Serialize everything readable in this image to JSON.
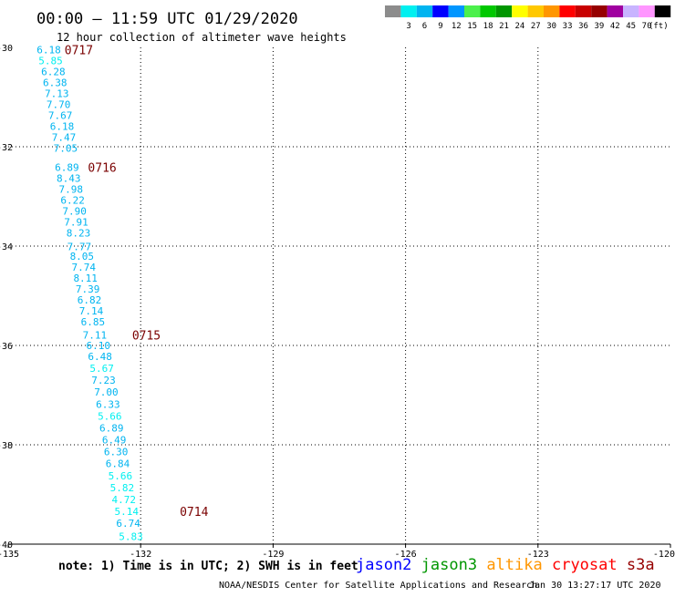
{
  "title": "00:00 – 11:59 UTC 01/29/2020",
  "subtitle": "12 hour collection of altimeter wave heights",
  "legend": {
    "unit": "(ft)",
    "swatches": [
      {
        "color": "#8c8c8c",
        "label": ""
      },
      {
        "color": "#00f0f0",
        "label": "3"
      },
      {
        "color": "#00b4f0",
        "label": "6"
      },
      {
        "color": "#0000ff",
        "label": "9"
      },
      {
        "color": "#0096ff",
        "label": "12"
      },
      {
        "color": "#4cf04c",
        "label": "15"
      },
      {
        "color": "#00c800",
        "label": "18"
      },
      {
        "color": "#009600",
        "label": "21"
      },
      {
        "color": "#ffff00",
        "label": "24"
      },
      {
        "color": "#ffc800",
        "label": "27"
      },
      {
        "color": "#ff9600",
        "label": "30"
      },
      {
        "color": "#ff0000",
        "label": "33"
      },
      {
        "color": "#c80000",
        "label": "36"
      },
      {
        "color": "#960000",
        "label": "39"
      },
      {
        "color": "#a000a0",
        "label": "42"
      },
      {
        "color": "#c8b4ff",
        "label": "45"
      },
      {
        "color": "#ff96ff",
        "label": "70"
      },
      {
        "color": "#000000",
        "label": ""
      }
    ]
  },
  "map": {
    "lon_range": [
      -135,
      -120
    ],
    "lat_range": [
      -40,
      -30
    ],
    "lon_ticks": [
      {
        "value": -135,
        "label": "-135"
      },
      {
        "value": -132,
        "label": "-132"
      },
      {
        "value": -129,
        "label": "-129"
      },
      {
        "value": -126,
        "label": "-126"
      },
      {
        "value": -123,
        "label": "-123"
      },
      {
        "value": -120,
        "label": "-120"
      }
    ],
    "lat_ticks": [
      {
        "value": -30,
        "label": "-30"
      },
      {
        "value": -32,
        "label": "-32"
      },
      {
        "value": -34,
        "label": "-34"
      },
      {
        "value": -36,
        "label": "-36"
      },
      {
        "value": -38,
        "label": "-38"
      },
      {
        "value": -40,
        "label": "-40"
      }
    ]
  },
  "wave_points": [
    {
      "lon": -134.08,
      "lat": -30.05,
      "value": "6.18",
      "color": "#00b4f0"
    },
    {
      "lon": -134.04,
      "lat": -30.27,
      "value": "5.85",
      "color": "#00f0f0"
    },
    {
      "lon": -133.98,
      "lat": -30.49,
      "value": "6.28",
      "color": "#00b4f0"
    },
    {
      "lon": -133.94,
      "lat": -30.71,
      "value": "6.38",
      "color": "#00b4f0"
    },
    {
      "lon": -133.9,
      "lat": -30.93,
      "value": "7.13",
      "color": "#00b4f0"
    },
    {
      "lon": -133.86,
      "lat": -31.15,
      "value": "7.70",
      "color": "#00b4f0"
    },
    {
      "lon": -133.82,
      "lat": -31.37,
      "value": "7.67",
      "color": "#00b4f0"
    },
    {
      "lon": -133.78,
      "lat": -31.59,
      "value": "6.18",
      "color": "#00b4f0"
    },
    {
      "lon": -133.74,
      "lat": -31.81,
      "value": "7.47",
      "color": "#00b4f0"
    },
    {
      "lon": -133.7,
      "lat": -32.03,
      "value": "7.05",
      "color": "#00b4f0"
    },
    {
      "lon": -133.67,
      "lat": -32.41,
      "value": "6.89",
      "color": "#00b4f0"
    },
    {
      "lon": -133.63,
      "lat": -32.63,
      "value": "8.43",
      "color": "#00b4f0"
    },
    {
      "lon": -133.58,
      "lat": -32.85,
      "value": "7.98",
      "color": "#00b4f0"
    },
    {
      "lon": -133.54,
      "lat": -33.07,
      "value": "6.22",
      "color": "#00b4f0"
    },
    {
      "lon": -133.5,
      "lat": -33.29,
      "value": "7.90",
      "color": "#00b4f0"
    },
    {
      "lon": -133.46,
      "lat": -33.51,
      "value": "7.91",
      "color": "#00b4f0"
    },
    {
      "lon": -133.41,
      "lat": -33.73,
      "value": "8.23",
      "color": "#00b4f0"
    },
    {
      "lon": -133.39,
      "lat": -34.01,
      "value": "7.77",
      "color": "#00b4f0"
    },
    {
      "lon": -133.33,
      "lat": -34.2,
      "value": "8.05",
      "color": "#00b4f0"
    },
    {
      "lon": -133.29,
      "lat": -34.42,
      "value": "7.74",
      "color": "#00b4f0"
    },
    {
      "lon": -133.25,
      "lat": -34.64,
      "value": "8.11",
      "color": "#00b4f0"
    },
    {
      "lon": -133.2,
      "lat": -34.86,
      "value": "7.39",
      "color": "#00b4f0"
    },
    {
      "lon": -133.16,
      "lat": -35.08,
      "value": "6.82",
      "color": "#00b4f0"
    },
    {
      "lon": -133.12,
      "lat": -35.3,
      "value": "7.14",
      "color": "#00b4f0"
    },
    {
      "lon": -133.08,
      "lat": -35.52,
      "value": "6.85",
      "color": "#00b4f0"
    },
    {
      "lon": -133.04,
      "lat": -35.79,
      "value": "7.11",
      "color": "#00b4f0"
    },
    {
      "lon": -132.96,
      "lat": -36.0,
      "value": "6.10",
      "color": "#00b4f0"
    },
    {
      "lon": -132.92,
      "lat": -36.22,
      "value": "6.48",
      "color": "#00b4f0"
    },
    {
      "lon": -132.88,
      "lat": -36.46,
      "value": "5.67",
      "color": "#00f0f0"
    },
    {
      "lon": -132.84,
      "lat": -36.7,
      "value": "7.23",
      "color": "#00b4f0"
    },
    {
      "lon": -132.78,
      "lat": -36.94,
      "value": "7.00",
      "color": "#00b4f0"
    },
    {
      "lon": -132.74,
      "lat": -37.18,
      "value": "6.33",
      "color": "#00b4f0"
    },
    {
      "lon": -132.7,
      "lat": -37.42,
      "value": "5.66",
      "color": "#00f0f0"
    },
    {
      "lon": -132.66,
      "lat": -37.66,
      "value": "6.89",
      "color": "#00b4f0"
    },
    {
      "lon": -132.6,
      "lat": -37.9,
      "value": "6.49",
      "color": "#00b4f0"
    },
    {
      "lon": -132.56,
      "lat": -38.14,
      "value": "6.30",
      "color": "#00b4f0"
    },
    {
      "lon": -132.52,
      "lat": -38.38,
      "value": "6.84",
      "color": "#00b4f0"
    },
    {
      "lon": -132.46,
      "lat": -38.62,
      "value": "5.66",
      "color": "#00f0f0"
    },
    {
      "lon": -132.42,
      "lat": -38.86,
      "value": "5.82",
      "color": "#00f0f0"
    },
    {
      "lon": -132.38,
      "lat": -39.1,
      "value": "4.72",
      "color": "#00f0f0"
    },
    {
      "lon": -132.32,
      "lat": -39.34,
      "value": "5.14",
      "color": "#00f0f0"
    },
    {
      "lon": -132.28,
      "lat": -39.58,
      "value": "6.74",
      "color": "#00b4f0"
    },
    {
      "lon": -132.22,
      "lat": -39.84,
      "value": "5.83",
      "color": "#00f0f0"
    }
  ],
  "time_labels": [
    {
      "lon": -133.4,
      "lat": -30.05,
      "text": "0717"
    },
    {
      "lon": -132.87,
      "lat": -32.41,
      "text": "0716"
    },
    {
      "lon": -131.87,
      "lat": -35.79,
      "text": "0715"
    },
    {
      "lon": -130.79,
      "lat": -39.34,
      "text": "0714"
    }
  ],
  "note": "note: 1) Time is in UTC; 2) SWH is in feet",
  "satellites": [
    {
      "name": "jason2",
      "color": "#0000ff"
    },
    {
      "name": "jason3",
      "color": "#009600"
    },
    {
      "name": "altika",
      "color": "#ff9600"
    },
    {
      "name": "cryosat",
      "color": "#ff0000"
    },
    {
      "name": "s3a",
      "color": "#960000"
    }
  ],
  "credit": "NOAA/NESDIS Center for Satellite Applications and Research",
  "generated": "Jan 30 13:27:17 UTC 2020"
}
